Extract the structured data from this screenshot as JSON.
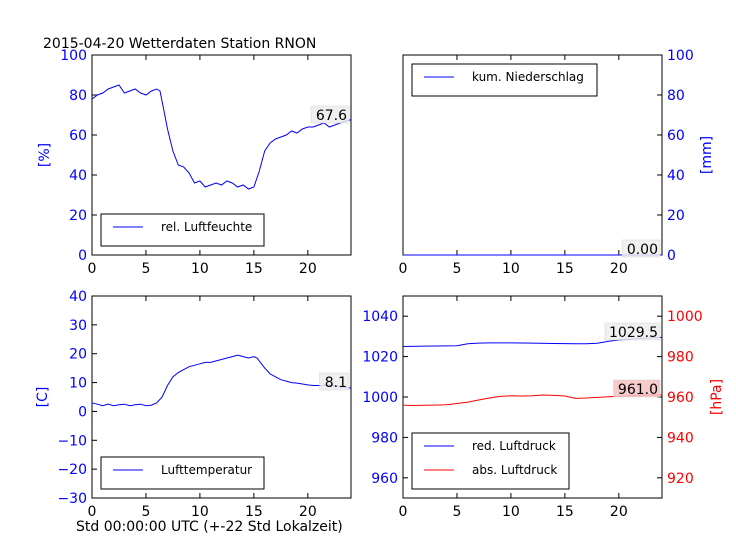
{
  "title": "2015-04-20 Wetterdaten Station RNON",
  "xlabel": "Std 00:00:00 UTC (+-22 Std Lokalzeit)",
  "colors": {
    "blue": "#0000ff",
    "red": "#ff0000",
    "red_box": "#f4c2c2"
  },
  "chart_data": [
    {
      "type": "line",
      "panel": "humidity",
      "ylabel": "[%]",
      "xlim": [
        0,
        24
      ],
      "ylim": [
        0,
        100
      ],
      "xticks": [
        "0",
        "5",
        "10",
        "15",
        "20"
      ],
      "yticks": [
        "0",
        "20",
        "40",
        "60",
        "80",
        "100"
      ],
      "legend_position": "lower-left",
      "series": [
        {
          "name": "rel. Luftfeuchte",
          "color": "#0000ff",
          "x": [
            0,
            0.5,
            1,
            1.5,
            2,
            2.5,
            3,
            3.5,
            4,
            4.5,
            5,
            5.5,
            6,
            6.3,
            6.6,
            7,
            7.5,
            8,
            8.5,
            9,
            9.5,
            10,
            10.5,
            11,
            11.5,
            12,
            12.5,
            13,
            13.5,
            14,
            14.5,
            15,
            15.5,
            16,
            16.5,
            17,
            17.5,
            18,
            18.5,
            19,
            19.5,
            20,
            20.5,
            21,
            21.5,
            22,
            22.5,
            23,
            23.5,
            24
          ],
          "y": [
            78,
            80,
            81,
            83,
            84,
            85,
            81,
            82,
            83,
            81,
            80,
            82,
            83,
            82,
            74,
            63,
            52,
            45,
            44,
            41,
            36,
            37,
            34,
            35,
            36,
            35,
            37,
            36,
            34,
            35,
            33,
            34,
            42,
            52,
            56,
            58,
            59,
            60,
            62,
            61,
            63,
            64,
            64,
            65,
            66,
            64,
            65,
            66,
            67,
            67.6
          ]
        }
      ],
      "last_value_label": "67.6"
    },
    {
      "type": "line",
      "panel": "precipitation",
      "ylabel": "[mm]",
      "xlim": [
        0,
        24
      ],
      "ylim": [
        0,
        100
      ],
      "xticks": [
        "0",
        "5",
        "10",
        "15",
        "20"
      ],
      "yticks": [
        "0",
        "20",
        "40",
        "60",
        "80",
        "100"
      ],
      "legend_position": "upper-left",
      "series": [
        {
          "name": "kum. Niederschlag",
          "color": "#0000ff",
          "x": [
            0,
            24
          ],
          "y": [
            0,
            0
          ]
        }
      ],
      "last_value_label": "0.00"
    },
    {
      "type": "line",
      "panel": "temperature",
      "ylabel": "[C]",
      "xlim": [
        0,
        24
      ],
      "ylim": [
        -30,
        40
      ],
      "xticks": [
        "0",
        "5",
        "10",
        "15",
        "20"
      ],
      "yticks": [
        "−30",
        "−20",
        "−10",
        "0",
        "10",
        "20",
        "30",
        "40"
      ],
      "legend_position": "lower-left",
      "series": [
        {
          "name": "Lufttemperatur",
          "color": "#0000ff",
          "x": [
            0,
            0.5,
            1,
            1.5,
            2,
            2.5,
            3,
            3.5,
            4,
            4.5,
            5,
            5.5,
            6,
            6.5,
            7,
            7.5,
            8,
            8.5,
            9,
            9.5,
            10,
            10.5,
            11,
            11.5,
            12,
            12.5,
            13,
            13.5,
            14,
            14.5,
            15,
            15.3,
            15.6,
            16,
            16.5,
            17,
            17.5,
            18,
            18.5,
            19,
            19.5,
            20,
            20.5,
            21,
            21.5,
            22,
            22.5,
            23,
            23.5,
            24
          ],
          "y": [
            3,
            2.5,
            2,
            2.5,
            2,
            2.3,
            2.5,
            2,
            2.3,
            2.5,
            2,
            2.2,
            3,
            5,
            9,
            12,
            13.5,
            14.5,
            15.5,
            16,
            16.5,
            17,
            17,
            17.5,
            18,
            18.5,
            19,
            19.5,
            19,
            18.5,
            19,
            18.5,
            17,
            15,
            13,
            12,
            11,
            10.5,
            10,
            9.8,
            9.5,
            9.2,
            9,
            9,
            9,
            9.2,
            8.8,
            8.5,
            8.3,
            8.1
          ]
        }
      ],
      "last_value_label": "8.1"
    },
    {
      "type": "line",
      "panel": "pressure",
      "ylabel": "[hPa]",
      "xlim": [
        0,
        24
      ],
      "ylim_left": [
        950,
        1050
      ],
      "ylim_right": [
        910,
        1010
      ],
      "xticks": [
        "0",
        "5",
        "10",
        "15",
        "20"
      ],
      "yticks_left": [
        "960",
        "980",
        "1000",
        "1020",
        "1040"
      ],
      "yticks_right": [
        "920",
        "940",
        "960",
        "980",
        "1000"
      ],
      "legend_position": "lower-left",
      "series": [
        {
          "name": "red. Luftdruck",
          "color": "#0000ff",
          "axis": "left",
          "x": [
            0,
            2,
            4,
            5,
            6,
            7,
            8,
            10,
            12,
            14,
            16,
            17,
            18,
            19,
            20,
            21,
            22,
            23,
            24
          ],
          "y": [
            1025,
            1025.2,
            1025.3,
            1025.4,
            1026.4,
            1026.7,
            1026.8,
            1026.8,
            1026.7,
            1026.5,
            1026.4,
            1026.4,
            1026.6,
            1027.5,
            1028.2,
            1028.6,
            1029,
            1029.3,
            1029.5
          ]
        },
        {
          "name": "abs. Luftdruck",
          "color": "#ff0000",
          "axis": "right",
          "x": [
            0,
            1,
            2,
            3,
            4,
            5,
            6,
            7,
            8,
            9,
            10,
            11,
            12,
            13,
            14,
            15,
            16,
            17,
            18,
            19,
            20,
            21,
            22,
            23,
            24
          ],
          "y": [
            956,
            955.8,
            955.9,
            956,
            956.2,
            956.8,
            957.5,
            958.5,
            959.5,
            960.3,
            960.6,
            960.5,
            960.6,
            961,
            960.8,
            960.5,
            959.3,
            959.5,
            959.8,
            960.1,
            960.4,
            960.6,
            960.8,
            961,
            961
          ]
        }
      ],
      "last_value_labels": [
        "1029.5",
        "961.0"
      ]
    }
  ]
}
